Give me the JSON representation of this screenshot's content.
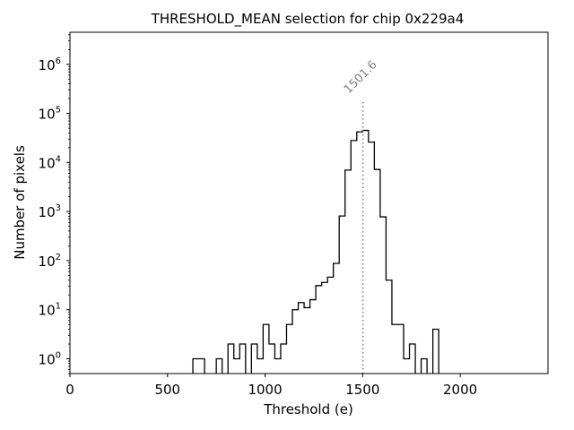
{
  "chart_data": {
    "type": "histogram",
    "title": "THRESHOLD_MEAN selection for chip 0x229a4",
    "xlabel": "Threshold (e)",
    "ylabel": "Number of pixels",
    "xlim": [
      0,
      2450
    ],
    "ylim": [
      0.5,
      4500000
    ],
    "yscale": "log",
    "x_ticks": [
      0,
      500,
      1000,
      1500,
      2000
    ],
    "x_tick_labels": [
      "0",
      "500",
      "1000",
      "1500",
      "2000"
    ],
    "y_ticks": [
      1,
      10,
      100,
      1000,
      10000,
      100000,
      1000000
    ],
    "y_tick_labels": [
      {
        "base": "10",
        "exp": "0"
      },
      {
        "base": "10",
        "exp": "1"
      },
      {
        "base": "10",
        "exp": "2"
      },
      {
        "base": "10",
        "exp": "3"
      },
      {
        "base": "10",
        "exp": "4"
      },
      {
        "base": "10",
        "exp": "5"
      },
      {
        "base": "10",
        "exp": "6"
      }
    ],
    "bin_width": 30,
    "bins": [
      {
        "x0": 630,
        "count": 1
      },
      {
        "x0": 660,
        "count": 1
      },
      {
        "x0": 690,
        "count": 0
      },
      {
        "x0": 720,
        "count": 0
      },
      {
        "x0": 750,
        "count": 1
      },
      {
        "x0": 780,
        "count": 0
      },
      {
        "x0": 810,
        "count": 2
      },
      {
        "x0": 840,
        "count": 1
      },
      {
        "x0": 870,
        "count": 2
      },
      {
        "x0": 900,
        "count": 0
      },
      {
        "x0": 930,
        "count": 2
      },
      {
        "x0": 960,
        "count": 1
      },
      {
        "x0": 990,
        "count": 5
      },
      {
        "x0": 1020,
        "count": 2
      },
      {
        "x0": 1050,
        "count": 1
      },
      {
        "x0": 1080,
        "count": 2
      },
      {
        "x0": 1110,
        "count": 5
      },
      {
        "x0": 1140,
        "count": 10
      },
      {
        "x0": 1170,
        "count": 14
      },
      {
        "x0": 1200,
        "count": 11
      },
      {
        "x0": 1230,
        "count": 16
      },
      {
        "x0": 1260,
        "count": 31
      },
      {
        "x0": 1290,
        "count": 36
      },
      {
        "x0": 1320,
        "count": 46
      },
      {
        "x0": 1350,
        "count": 88
      },
      {
        "x0": 1380,
        "count": 810
      },
      {
        "x0": 1410,
        "count": 7000
      },
      {
        "x0": 1440,
        "count": 28000
      },
      {
        "x0": 1470,
        "count": 42000
      },
      {
        "x0": 1500,
        "count": 45000
      },
      {
        "x0": 1530,
        "count": 26000
      },
      {
        "x0": 1560,
        "count": 7200
      },
      {
        "x0": 1590,
        "count": 780
      },
      {
        "x0": 1620,
        "count": 40
      },
      {
        "x0": 1650,
        "count": 5
      },
      {
        "x0": 1680,
        "count": 5
      },
      {
        "x0": 1710,
        "count": 1
      },
      {
        "x0": 1740,
        "count": 2
      },
      {
        "x0": 1770,
        "count": 0
      },
      {
        "x0": 1800,
        "count": 1
      },
      {
        "x0": 1830,
        "count": 0
      },
      {
        "x0": 1860,
        "count": 4
      }
    ],
    "annotation": {
      "x": 1501.6,
      "label": "1501.6",
      "line_top_value": 180000,
      "style": "dotted",
      "color": "#808080"
    },
    "grid": false,
    "line_color": "#000000"
  }
}
